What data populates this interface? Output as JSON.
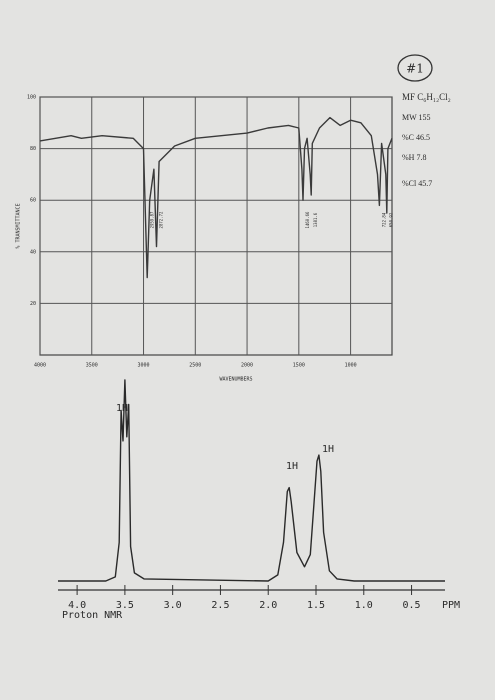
{
  "sheet": {
    "label": "#1",
    "formula": "MF C₆H₁₂Cl₂",
    "mw": "MW 155",
    "c": "%C 46.5",
    "h": "%H 7.8",
    "cl": "%Cl 45.7"
  },
  "chart_data": [
    {
      "type": "line",
      "ylabel": "% TRANSMITTANCE",
      "xlabel": "WAVENUMBERS",
      "color": "#3a3a3a",
      "grid": true,
      "x": [
        4000,
        3700,
        3600,
        3400,
        3100,
        3000,
        2965,
        2940,
        2900,
        2875,
        2850,
        2700,
        2500,
        2000,
        1800,
        1600,
        1500,
        1470,
        1460,
        1445,
        1420,
        1390,
        1380,
        1370,
        1300,
        1200,
        1100,
        1000,
        900,
        800,
        740,
        722,
        700,
        660,
        650,
        640,
        600
      ],
      "values": [
        83,
        85,
        84,
        85,
        84,
        80,
        30,
        60,
        72,
        42,
        75,
        81,
        84,
        86,
        88,
        89,
        88,
        72,
        60,
        80,
        84,
        70,
        62,
        82,
        88,
        92,
        89,
        91,
        90,
        85,
        70,
        58,
        82,
        70,
        55,
        80,
        84
      ],
      "xlim": [
        4000,
        600
      ],
      "ylim": [
        0,
        100
      ],
      "xticks": [
        4000,
        3500,
        3000,
        2500,
        2000,
        1500,
        1000
      ],
      "yticks": [
        20,
        40,
        60,
        80,
        100
      ],
      "peak_labels": [
        2959.87,
        2872.72,
        1460.66,
        1381.6,
        722.84,
        650.92
      ]
    },
    {
      "type": "line",
      "xlabel": "Proton NMR",
      "unit": "PPM",
      "color": "#2a2a2a",
      "grid": false,
      "x": [
        4.2,
        3.7,
        3.6,
        3.56,
        3.54,
        3.52,
        3.5,
        3.48,
        3.46,
        3.44,
        3.4,
        3.3,
        2.0,
        1.9,
        1.84,
        1.8,
        1.78,
        1.76,
        1.7,
        1.62,
        1.56,
        1.52,
        1.49,
        1.47,
        1.45,
        1.42,
        1.36,
        1.28,
        1.1,
        0.15
      ],
      "values": [
        1,
        1,
        3,
        20,
        85,
        70,
        100,
        72,
        88,
        18,
        5,
        2,
        1,
        4,
        20,
        45,
        47,
        40,
        15,
        8,
        14,
        40,
        60,
        63,
        55,
        25,
        6,
        2,
        1,
        1
      ],
      "xlim": [
        4.2,
        0.15
      ],
      "ylim": [
        0,
        100
      ],
      "xticks": [
        {
          "value": 4,
          "label": "4.0"
        },
        3.5,
        {
          "value": 3,
          "label": "3.0"
        },
        2.5,
        {
          "value": 2,
          "label": "2.0"
        },
        1.5,
        {
          "value": 1,
          "label": "1.0"
        },
        0.5
      ],
      "integrals": [
        "1H",
        "1H",
        "1H"
      ]
    }
  ]
}
